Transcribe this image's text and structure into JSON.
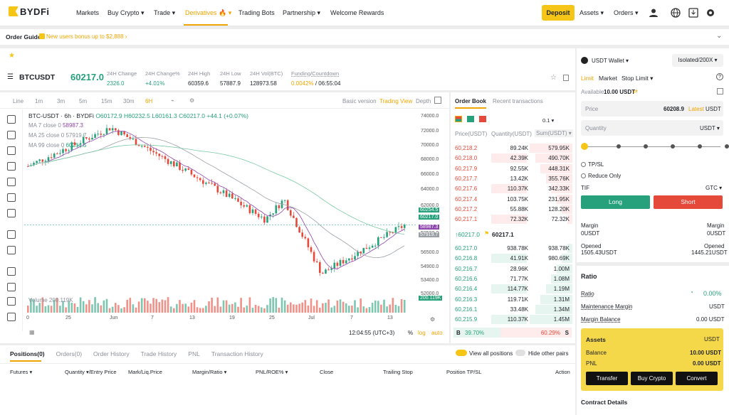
{
  "nav": {
    "brand": "BYDFi",
    "items": [
      {
        "label": "Markets"
      },
      {
        "label": "Buy Crypto ▾"
      },
      {
        "label": "Trade ▾"
      },
      {
        "label": "Derivatives 🔥 ▾"
      },
      {
        "label": "Trading Bots"
      },
      {
        "label": "Partnership ▾"
      },
      {
        "label": "Welcome Rewards"
      }
    ],
    "deposit": "Deposit",
    "assets": "Assets ▾",
    "orders": "Orders ▾"
  },
  "guide": {
    "title": "Order Guide",
    "promo": "New users bonus up to $2,888 ›"
  },
  "ticker": {
    "symbol": "BTCUSDT",
    "price": "60217.0",
    "stats": [
      {
        "label": "24H Change",
        "value": "2326.0"
      },
      {
        "label": "24H Change%",
        "value": "+4.01%"
      },
      {
        "label": "24H High",
        "value": "60359.6"
      },
      {
        "label": "24H Low",
        "value": "57887.9"
      },
      {
        "label": "24H Vol(BTC)",
        "value": "128973.58"
      }
    ],
    "funding_label": "Funding/Countdown",
    "funding_rate": "0.0042%",
    "funding_countdown": "/ 06:55:04"
  },
  "chart": {
    "intervals": [
      "Line",
      "1m",
      "3m",
      "5m",
      "15m",
      "30m",
      "6H"
    ],
    "active_interval": "6H",
    "views": [
      "Basic version",
      "Trading View",
      "Depth"
    ],
    "active_view": "Trading View",
    "legend_title": "BTC-USDT · 6h · BYDFi",
    "legend_o": "O60172.9",
    "legend_h": "H60232.5",
    "legend_l": "L60161.3",
    "legend_c": "C60217.0",
    "legend_chg": "+44.1 (+0.07%)",
    "ma7": "MA 7 close 0",
    "ma7v": "58987.3",
    "ma25": "MA 25 close 0",
    "ma25v": "57919.7",
    "ma99": "MA 99 close 0",
    "ma99v": "60254.5",
    "volume_label": "Volume 200.119K",
    "volume_tag": "200.119K",
    "price_axis": [
      "74000.0",
      "72000.0",
      "70000.0",
      "68000.0",
      "66000.0",
      "64000.0",
      "62000.0",
      "58500.0",
      "56500.0",
      "54900.0",
      "53400.0",
      "52000.0"
    ],
    "price_tags": [
      {
        "v": "60254.5",
        "c": "#26a17b"
      },
      {
        "v": "60217.0",
        "c": "#26a17b"
      },
      {
        "v": "58987.3",
        "c": "#8e44ad"
      },
      {
        "v": "57919.7",
        "c": "#9aa0a6"
      }
    ],
    "time_axis": [
      "0",
      "25",
      "Jun",
      "7",
      "13",
      "19",
      "25",
      "Jul",
      "7",
      "13"
    ],
    "clock": "12:04:55 (UTC+3)",
    "pct": "%",
    "log": "log",
    "auto": "auto"
  },
  "orderbook": {
    "tabs": [
      "Order Book",
      "Recent transactions"
    ],
    "precision": "0.1 ▾",
    "cols": [
      "Price(USDT)",
      "Quantity(USDT)",
      "Sum(USDT) ▾"
    ],
    "asks": [
      [
        "60,218.2",
        "89.24K",
        "579.95K"
      ],
      [
        "60,218.0",
        "42.39K",
        "490.70K"
      ],
      [
        "60,217.9",
        "92.55K",
        "448.31K"
      ],
      [
        "60,217.7",
        "13.42K",
        "355.76K"
      ],
      [
        "60,217.6",
        "110.37K",
        "342.33K"
      ],
      [
        "60,217.4",
        "103.75K",
        "231.95K"
      ],
      [
        "60,217.2",
        "55.88K",
        "128.20K"
      ],
      [
        "60,217.1",
        "72.32K",
        "72.32K"
      ]
    ],
    "last": "↑60217.0",
    "mark": "60217.1",
    "bids": [
      [
        "60,217.0",
        "938.78K",
        "938.78K"
      ],
      [
        "60,216.8",
        "41.91K",
        "980.69K"
      ],
      [
        "60,216.7",
        "28.96K",
        "1.00M"
      ],
      [
        "60,216.6",
        "71.77K",
        "1.08M"
      ],
      [
        "60,216.4",
        "114.77K",
        "1.19M"
      ],
      [
        "60,216.3",
        "119.71K",
        "1.31M"
      ],
      [
        "60,216.1",
        "33.48K",
        "1.34M"
      ],
      [
        "60,215.9",
        "110.37K",
        "1.45M"
      ]
    ],
    "buy_pct": "39.70%",
    "sell_pct": "60.29%",
    "b": "B",
    "s": "S"
  },
  "trade": {
    "wallet": "USDT Wallet ▾",
    "mode": "Isolated/200X ▾",
    "types": [
      "Limit",
      "Market",
      "Stop Limit ▾"
    ],
    "available_label": "Available",
    "available": "10.00 USDT",
    "price_label": "Price",
    "price": "60208.9",
    "latest": "Latest",
    "unit": "USDT",
    "qty_label": "Quantity",
    "qty_unit": "USDT ▾",
    "tpsl": "TP/SL",
    "reduce": "Reduce Only",
    "tif": "TIF",
    "tif_val": "GTC ▾",
    "long": "Long",
    "short": "Short",
    "margin_label": "Margin",
    "margin_l": "0USDT",
    "margin_r": "0USDT",
    "opened_label": "Opened",
    "opened_l": "1505.43USDT",
    "opened_r": "1445.21USDT",
    "ratio_title": "Ratio",
    "ratio_label": "Ratio",
    "ratio_val": "0.00%",
    "mm_label": "Maintenance Margin",
    "mm_val": "USDT",
    "mb_label": "Margin Balance",
    "mb_val": "0.00 USDT",
    "assets_title": "Assets",
    "assets_unit": "USDT",
    "balance_label": "Balance",
    "balance": "10.00 USDT",
    "pnl_label": "PNL",
    "pnl": "0.00 USDT",
    "transfer": "Transfer",
    "buy": "Buy Crypto",
    "convert": "Convert",
    "contract": "Contract Details"
  },
  "positions": {
    "tabs": [
      "Positions(0)",
      "Orders(0)",
      "Order History",
      "Trade History",
      "PNL",
      "Transaction History"
    ],
    "view_all": "View all positions",
    "hide": "Hide other pairs",
    "cols": [
      "Futures ▾",
      "Quantity ▾/Entry Price",
      "Mark/Liq.Price",
      "Margin/Ratio ▾",
      "PNL/ROE% ▾",
      "Close",
      "Trailing Stop",
      "Position TP/SL",
      "Action"
    ]
  }
}
